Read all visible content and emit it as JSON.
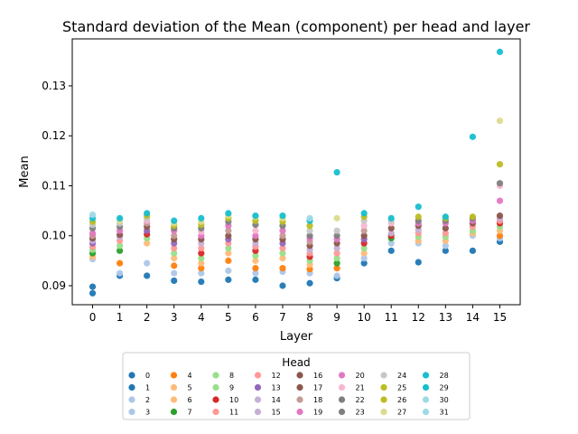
{
  "chart_data": {
    "type": "scatter",
    "title": "Standard deviation of the Mean (component) per head and layer",
    "xlabel": "Layer",
    "ylabel": "Mean",
    "xticks": [
      "0",
      "1",
      "2",
      "3",
      "4",
      "5",
      "6",
      "7",
      "8",
      "9",
      "10",
      "11",
      "12",
      "13",
      "14",
      "15"
    ],
    "yticks": [
      "0.09",
      "0.10",
      "0.11",
      "0.12",
      "0.13"
    ],
    "ylim": [
      0.0862,
      0.1394
    ],
    "xlim": [
      -0.75,
      15.75
    ],
    "grid": false,
    "legend": {
      "title": "Head",
      "placement": "bottom-center",
      "entries": [
        "0",
        "1",
        "2",
        "3",
        "4",
        "5",
        "6",
        "7",
        "8",
        "9",
        "10",
        "11",
        "12",
        "13",
        "14",
        "15",
        "16",
        "17",
        "18",
        "19",
        "20",
        "21",
        "22",
        "23",
        "24",
        "25",
        "26",
        "27",
        "28",
        "29",
        "30",
        "31"
      ],
      "colors": [
        "#1f77b4",
        "#1f77b4",
        "#aec7e8",
        "#aec7e8",
        "#ff7f0e",
        "#ffbb78",
        "#ffbb78",
        "#2ca02c",
        "#98df8a",
        "#98df8a",
        "#d62728",
        "#ff9896",
        "#ff9896",
        "#9467bd",
        "#c5b0d5",
        "#c5b0d5",
        "#8c564b",
        "#8c564b",
        "#c49c94",
        "#e377c2",
        "#e377c2",
        "#f7b6d2",
        "#7f7f7f",
        "#7f7f7f",
        "#c7c7c7",
        "#bcbd22",
        "#bcbd22",
        "#dbdb8d",
        "#17becf",
        "#17becf",
        "#9edae5",
        "#9edae5"
      ]
    },
    "series": [
      {
        "layer": 0,
        "values": [
          0.0885,
          0.0898,
          0.0953,
          0.0958,
          0.0965,
          0.0972,
          0.0978,
          0.0985,
          0.099,
          0.0995,
          0.1,
          0.1005,
          0.1015,
          0.1022,
          0.1028,
          0.1035,
          0.1042
        ]
      },
      {
        "layer": 1,
        "values": [
          0.092,
          0.0925,
          0.0945,
          0.097,
          0.098,
          0.099,
          0.0998,
          0.1002,
          0.101,
          0.1018,
          0.1025,
          0.103,
          0.1035
        ]
      },
      {
        "layer": 2,
        "values": [
          0.092,
          0.0945,
          0.0985,
          0.0995,
          0.1003,
          0.101,
          0.1018,
          0.1025,
          0.103,
          0.1035,
          0.104,
          0.1045
        ]
      },
      {
        "layer": 3,
        "values": [
          0.091,
          0.0925,
          0.094,
          0.0955,
          0.0965,
          0.0975,
          0.0985,
          0.0993,
          0.1,
          0.101,
          0.1015,
          0.102,
          0.1025,
          0.103
        ]
      },
      {
        "layer": 4,
        "values": [
          0.0908,
          0.0925,
          0.0935,
          0.0945,
          0.0955,
          0.0965,
          0.0975,
          0.0985,
          0.0993,
          0.1,
          0.1008,
          0.1015,
          0.1022,
          0.1028,
          0.1035
        ]
      },
      {
        "layer": 5,
        "values": [
          0.0912,
          0.093,
          0.095,
          0.0965,
          0.0975,
          0.0985,
          0.0993,
          0.1,
          0.101,
          0.102,
          0.1028,
          0.1035,
          0.104,
          0.1045
        ]
      },
      {
        "layer": 6,
        "values": [
          0.0912,
          0.0925,
          0.0935,
          0.095,
          0.096,
          0.097,
          0.0978,
          0.0985,
          0.0993,
          0.1,
          0.101,
          0.1022,
          0.103,
          0.1038,
          0.104
        ]
      },
      {
        "layer": 7,
        "values": [
          0.09,
          0.0928,
          0.0935,
          0.0955,
          0.0965,
          0.0975,
          0.0985,
          0.0993,
          0.1,
          0.101,
          0.102,
          0.1028,
          0.1035,
          0.104
        ]
      },
      {
        "layer": 8,
        "values": [
          0.0905,
          0.0925,
          0.0933,
          0.0942,
          0.095,
          0.0958,
          0.0965,
          0.0972,
          0.098,
          0.0988,
          0.0995,
          0.1,
          0.101,
          0.102,
          0.103,
          0.1035
        ]
      },
      {
        "layer": 9,
        "values": [
          0.0915,
          0.092,
          0.0935,
          0.0945,
          0.0955,
          0.0965,
          0.0975,
          0.0985,
          0.0993,
          0.1,
          0.101,
          0.1035,
          0.1127
        ]
      },
      {
        "layer": 10,
        "values": [
          0.0945,
          0.0955,
          0.0965,
          0.0975,
          0.0985,
          0.0993,
          0.1,
          0.101,
          0.102,
          0.103,
          0.1038,
          0.1045
        ]
      },
      {
        "layer": 11,
        "values": [
          0.097,
          0.0985,
          0.0995,
          0.1,
          0.1005,
          0.1015,
          0.1025,
          0.103,
          0.1035
        ]
      },
      {
        "layer": 12,
        "values": [
          0.0947,
          0.0985,
          0.099,
          0.0998,
          0.1005,
          0.1012,
          0.102,
          0.1025,
          0.103,
          0.1038,
          0.1058
        ]
      },
      {
        "layer": 13,
        "values": [
          0.097,
          0.098,
          0.099,
          0.0998,
          0.1005,
          0.1015,
          0.1025,
          0.103,
          0.1035,
          0.1038
        ]
      },
      {
        "layer": 14,
        "values": [
          0.097,
          0.1,
          0.1005,
          0.101,
          0.1018,
          0.1025,
          0.103,
          0.1035,
          0.1038,
          0.1198
        ]
      },
      {
        "layer": 15,
        "values": [
          0.0988,
          0.0995,
          0.1,
          0.101,
          0.1018,
          0.1025,
          0.103,
          0.1035,
          0.104,
          0.107,
          0.11,
          0.1105,
          0.1143,
          0.123,
          0.1368
        ]
      }
    ]
  }
}
